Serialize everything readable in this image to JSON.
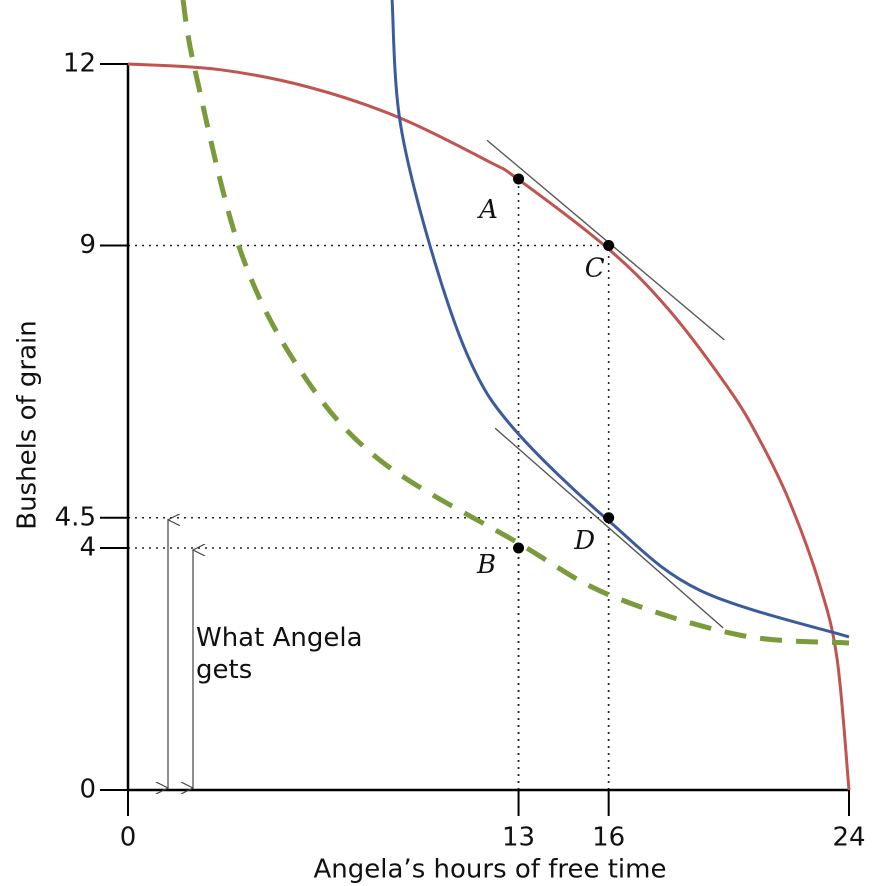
{
  "chart_data": {
    "type": "line",
    "xlabel": "Angela’s hours of free time",
    "ylabel": "Bushels of grain",
    "xlim": [
      0,
      24
    ],
    "ylim": [
      0,
      12
    ],
    "xticks": [
      0,
      13,
      16,
      24
    ],
    "yticks": [
      0,
      4,
      4.5,
      9,
      12
    ],
    "series": [
      {
        "color": "#c0544f",
        "dashed": false,
        "x": [
          0,
          3,
          6,
          9,
          12,
          13,
          16,
          18,
          20,
          21,
          22,
          23,
          23.6,
          24
        ],
        "values": [
          12,
          11.91,
          11.62,
          11.12,
          10.39,
          10.09,
          8.94,
          7.94,
          6.63,
          5.81,
          4.79,
          3.43,
          2.18,
          0
        ]
      },
      {
        "color": "#3b5c9c",
        "dashed": false,
        "x": [
          8.79,
          9.05,
          10.05,
          11.38,
          12.88,
          16,
          19.04,
          24
        ],
        "values": [
          13.06,
          11.07,
          9.0,
          7.1,
          5.95,
          4.45,
          3.3,
          2.53
        ]
      },
      {
        "color": "#7a9a3c",
        "dashed": true,
        "x": [
          1.83,
          2.23,
          3.73,
          5.73,
          8.39,
          13,
          16.04,
          20.37,
          24
        ],
        "values": [
          13.06,
          11.9,
          8.93,
          6.94,
          5.45,
          4.08,
          3.22,
          2.56,
          2.43
        ]
      }
    ],
    "tangent_lines": [
      {
        "x": [
          11.95,
          19.85
        ],
        "values": [
          10.74,
          7.44
        ]
      },
      {
        "x": [
          12.22,
          19.81
        ],
        "values": [
          5.98,
          2.68
        ]
      }
    ],
    "points": [
      {
        "label": "A",
        "x": 13,
        "y": 10.1
      },
      {
        "label": "B",
        "x": 13,
        "y": 4
      },
      {
        "label": "C",
        "x": 16,
        "y": 9
      },
      {
        "label": "D",
        "x": 16,
        "y": 4.5
      }
    ],
    "annotation": "What Angela gets"
  }
}
